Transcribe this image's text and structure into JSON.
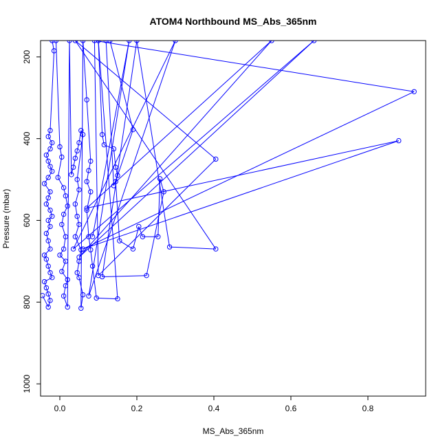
{
  "chart_data": {
    "type": "line",
    "title": "ATOM4 Northbound MS_Abs_365nm",
    "xlabel": "MS_Abs_365nm",
    "ylabel": "Pressure (mbar)",
    "xlim": [
      -0.05,
      0.95
    ],
    "ylim": [
      1030,
      160
    ],
    "y_reversed": true,
    "grid": false,
    "legend": "none",
    "x_ticks": [
      0.0,
      0.2,
      0.4,
      0.6,
      0.8
    ],
    "x_tick_labels": [
      "0.0",
      "0.2",
      "0.4",
      "0.6",
      "0.8"
    ],
    "y_ticks": [
      200,
      400,
      600,
      800,
      1000
    ],
    "y_tick_labels": [
      "200",
      "400",
      "600",
      "800",
      "1000"
    ],
    "series": [
      {
        "color": "#0000ff",
        "marker": "open-circle",
        "points": [
          [
            -0.045,
            784
          ],
          [
            -0.03,
            812
          ],
          [
            -0.025,
            796
          ],
          [
            -0.03,
            780
          ],
          [
            -0.035,
            765
          ],
          [
            -0.04,
            750
          ],
          [
            -0.02,
            740
          ],
          [
            -0.025,
            728
          ],
          [
            -0.03,
            712
          ],
          [
            -0.035,
            695
          ],
          [
            -0.04,
            685
          ],
          [
            -0.025,
            670
          ],
          [
            -0.03,
            650
          ],
          [
            -0.035,
            632
          ],
          [
            -0.025,
            615
          ],
          [
            -0.03,
            600
          ],
          [
            -0.02,
            590
          ],
          [
            -0.025,
            575
          ],
          [
            -0.035,
            560
          ],
          [
            -0.03,
            545
          ],
          [
            -0.025,
            530
          ],
          [
            -0.04,
            510
          ],
          [
            -0.03,
            495
          ],
          [
            -0.02,
            480
          ],
          [
            -0.025,
            468
          ],
          [
            -0.03,
            455
          ],
          [
            -0.035,
            440
          ],
          [
            -0.025,
            425
          ],
          [
            -0.02,
            410
          ],
          [
            -0.03,
            395
          ],
          [
            -0.025,
            380
          ],
          [
            -0.015,
            185
          ],
          [
            -0.02,
            160
          ],
          [
            -0.01,
            160
          ],
          [
            0.0,
            420
          ],
          [
            0.005,
            445
          ],
          [
            -0.005,
            495
          ],
          [
            0.01,
            520
          ],
          [
            0.015,
            540
          ],
          [
            0.02,
            565
          ],
          [
            0.01,
            585
          ],
          [
            0.005,
            610
          ],
          [
            0.015,
            640
          ],
          [
            0.01,
            670
          ],
          [
            0.0,
            685
          ],
          [
            0.015,
            700
          ],
          [
            0.005,
            725
          ],
          [
            0.02,
            745
          ],
          [
            0.015,
            760
          ],
          [
            0.01,
            785
          ],
          [
            0.02,
            812
          ],
          [
            0.025,
            160
          ],
          [
            0.03,
            488
          ],
          [
            0.035,
            470
          ],
          [
            0.04,
            448
          ],
          [
            0.045,
            430
          ],
          [
            0.05,
            410
          ],
          [
            0.055,
            380
          ],
          [
            0.06,
            390
          ],
          [
            0.045,
            500
          ],
          [
            0.05,
            525
          ],
          [
            0.04,
            560
          ],
          [
            0.045,
            590
          ],
          [
            0.05,
            610
          ],
          [
            0.04,
            640
          ],
          [
            0.055,
            672
          ],
          [
            0.05,
            700
          ],
          [
            0.045,
            728
          ],
          [
            0.05,
            740
          ],
          [
            0.06,
            782
          ],
          [
            0.055,
            815
          ],
          [
            0.06,
            160
          ],
          [
            0.07,
            305
          ],
          [
            0.08,
            455
          ],
          [
            0.075,
            478
          ],
          [
            0.07,
            505
          ],
          [
            0.08,
            530
          ],
          [
            0.07,
            575
          ],
          [
            0.075,
            640
          ],
          [
            0.08,
            672
          ],
          [
            0.085,
            712
          ],
          [
            0.095,
            790
          ],
          [
            0.15,
            792
          ],
          [
            0.1,
            160
          ],
          [
            0.11,
            390
          ],
          [
            0.115,
            415
          ],
          [
            0.14,
            425
          ],
          [
            0.145,
            470
          ],
          [
            0.15,
            490
          ],
          [
            0.14,
            515
          ],
          [
            0.12,
            160
          ],
          [
            0.13,
            160
          ],
          [
            0.19,
            378
          ],
          [
            0.145,
            505
          ],
          [
            0.155,
            650
          ],
          [
            0.19,
            670
          ],
          [
            0.205,
            615
          ],
          [
            0.215,
            640
          ],
          [
            0.255,
            640
          ],
          [
            0.26,
            498
          ],
          [
            0.27,
            530
          ],
          [
            0.225,
            735
          ],
          [
            0.11,
            738
          ],
          [
            0.2,
            160
          ],
          [
            0.285,
            665
          ],
          [
            0.405,
            670
          ],
          [
            0.04,
            160
          ],
          [
            0.405,
            450
          ],
          [
            0.1,
            735
          ],
          [
            0.09,
            160
          ],
          [
            0.92,
            285
          ],
          [
            0.06,
            670
          ],
          [
            0.88,
            405
          ],
          [
            0.07,
            570
          ],
          [
            0.55,
            160
          ],
          [
            0.05,
            690
          ],
          [
            0.66,
            160
          ],
          [
            0.035,
            670
          ],
          [
            0.3,
            160
          ],
          [
            0.075,
            785
          ],
          [
            0.18,
            160
          ],
          [
            0.085,
            640
          ]
        ]
      }
    ]
  }
}
